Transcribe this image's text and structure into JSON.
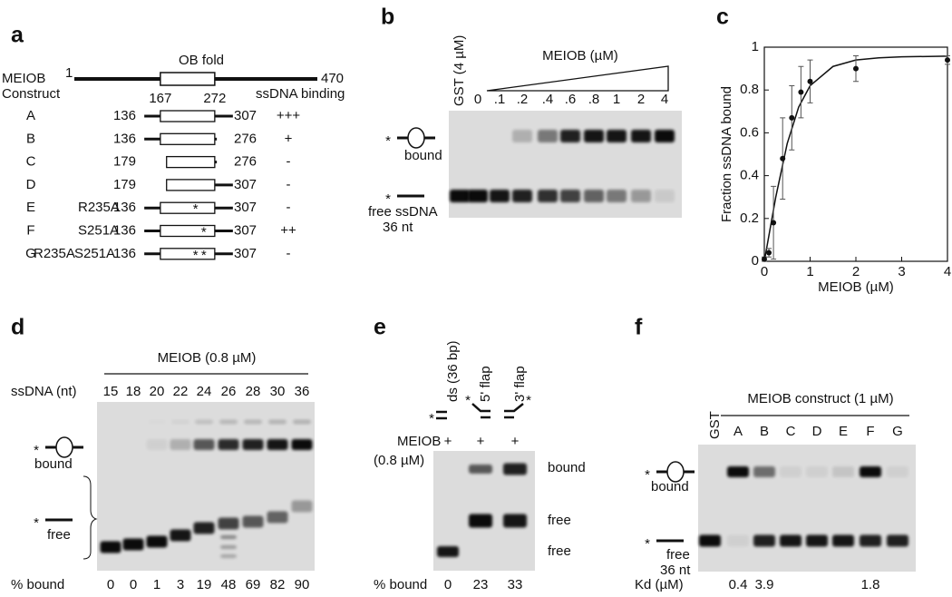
{
  "panels": {
    "a": {
      "label": "a",
      "protein": "MEIOB",
      "start": "1",
      "end": "470",
      "domain": "OB fold",
      "domain_start": "167",
      "domain_end": "272",
      "construct_header": "Construct",
      "binding_header": "ssDNA binding",
      "constructs": [
        {
          "name": "A",
          "mutations": [],
          "start": "136",
          "end": "307",
          "binding": "+++"
        },
        {
          "name": "B",
          "mutations": [],
          "start": "136",
          "end": "276",
          "binding": "+"
        },
        {
          "name": "C",
          "mutations": [],
          "start": "179",
          "end": "276",
          "binding": "-"
        },
        {
          "name": "D",
          "mutations": [],
          "start": "179",
          "end": "307",
          "binding": "-"
        },
        {
          "name": "E",
          "mutations": [
            "R235A"
          ],
          "start": "136",
          "end": "307",
          "binding": "-"
        },
        {
          "name": "F",
          "mutations": [
            "S251A"
          ],
          "start": "136",
          "end": "307",
          "binding": "++"
        },
        {
          "name": "G",
          "mutations": [
            "R235A",
            "S251A"
          ],
          "start": "136",
          "end": "307",
          "binding": "-"
        }
      ]
    },
    "b": {
      "label": "b",
      "control": "GST (4 µM)",
      "titration": "MEIOB (µM)",
      "lanes": [
        "0",
        ".1",
        ".2",
        ".4",
        ".6",
        ".8",
        "1",
        "2",
        "4"
      ],
      "bound": "bound",
      "free": "free ssDNA",
      "length": "36 nt"
    },
    "c": {
      "label": "c",
      "chart": {
        "type": "scatter",
        "x_label": "MEIOB (µM)",
        "y_label": "Fraction ssDNA bound",
        "x": [
          0,
          0.1,
          0.2,
          0.4,
          0.6,
          0.8,
          1,
          2,
          4
        ],
        "y": [
          0.01,
          0.04,
          0.18,
          0.48,
          0.67,
          0.79,
          0.84,
          0.9,
          0.94
        ],
        "errors": [
          0.01,
          0.02,
          0.17,
          0.19,
          0.15,
          0.12,
          0.1,
          0.06,
          0.02
        ],
        "fit_x": [
          0,
          0.25,
          0.5,
          0.75,
          1,
          1.5,
          2,
          2.5,
          3,
          4
        ],
        "fit_y": [
          0,
          0.3,
          0.55,
          0.72,
          0.82,
          0.91,
          0.94,
          0.95,
          0.955,
          0.958
        ],
        "xlim": [
          0,
          4
        ],
        "ylim": [
          0,
          1
        ],
        "xticks": [
          0,
          1,
          2,
          3,
          4
        ],
        "yticks": [
          0,
          0.2,
          0.4,
          0.6,
          0.8,
          1
        ]
      }
    },
    "d": {
      "label": "d",
      "condition": "MEIOB (0.8 µM)",
      "row_label": "ssDNA (nt)",
      "lanes": [
        "15",
        "18",
        "20",
        "22",
        "24",
        "26",
        "28",
        "30",
        "36"
      ],
      "bound": "bound",
      "free": "free",
      "percent_label": "% bound",
      "percent_bound": [
        0,
        0,
        1,
        3,
        19,
        48,
        69,
        82,
        90
      ]
    },
    "e": {
      "label": "e",
      "substrates": [
        "ds (36 bp)",
        "5' flap",
        "3' flap"
      ],
      "protein": "MEIOB",
      "concentration": "(0.8 µM)",
      "additions": [
        "+",
        "+",
        "+"
      ],
      "bands": [
        "bound",
        "free",
        "free"
      ],
      "percent_label": "% bound",
      "percent_bound": [
        0,
        23,
        33
      ]
    },
    "f": {
      "label": "f",
      "control": "GST",
      "condition": "MEIOB construct (1 µM)",
      "lanes": [
        "A",
        "B",
        "C",
        "D",
        "E",
        "F",
        "G"
      ],
      "bound": "bound",
      "free": "free",
      "length": "36 nt",
      "kd_label": "Kd (µM)",
      "kd": [
        0.4,
        3.9,
        null,
        null,
        null,
        1.8,
        null
      ]
    }
  }
}
